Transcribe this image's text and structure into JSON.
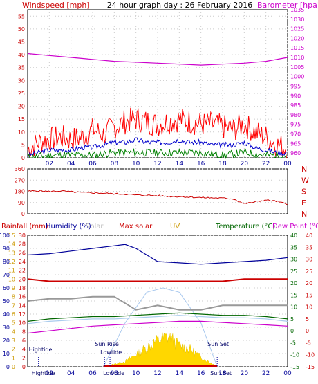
{
  "colors": {
    "wind": "#ff0000",
    "gust": "#ff0000",
    "avgwind": "#0000cc",
    "lowwind": "#008000",
    "baro": "#cc00cc",
    "dir": "#cc0000",
    "humidity": "#000099",
    "rain": "#cc0000",
    "solar": "#ffd700",
    "solarcurve": "#a8c8ee",
    "temp": "#006600",
    "dew": "#cc00cc",
    "uv": "#cc9900",
    "grey": "#999999",
    "lightblue": "#aaccee",
    "axis": "#000000"
  },
  "chart_data": [
    {
      "type": "line",
      "title": "24 hour graph day : 26 February 2016",
      "ylabel": "Windspeed [mph]",
      "y2label": "Barometer [hpa]",
      "ylim": [
        0,
        57.5
      ],
      "y2lim": [
        957.5,
        1035
      ],
      "yticks": [
        0,
        5,
        10,
        15,
        20,
        25,
        30,
        35,
        40,
        45,
        50,
        55
      ],
      "y2ticks": [
        960,
        965,
        970,
        975,
        980,
        985,
        990,
        995,
        1000,
        1005,
        1010,
        1015,
        1020,
        1025,
        1030,
        1035
      ],
      "x_ticks": [
        "02",
        "04",
        "06",
        "08",
        "10",
        "12",
        "14",
        "16",
        "18",
        "20",
        "22",
        "00"
      ],
      "series": [
        {
          "name": "",
          "key": "gust",
          "x": [
            0,
            1,
            2,
            3,
            4,
            5,
            6,
            7,
            8,
            9,
            10,
            11,
            12,
            13,
            14,
            15,
            16,
            17,
            18,
            19,
            20,
            21,
            22,
            23,
            24
          ],
          "values": [
            3,
            6,
            7,
            8,
            7,
            8,
            11,
            9,
            12,
            14,
            15,
            14,
            13,
            14,
            15,
            14,
            13,
            13,
            12,
            11,
            13,
            10,
            8,
            5,
            4
          ]
        },
        {
          "name": "",
          "key": "avgwind",
          "x": [
            0,
            1,
            2,
            3,
            4,
            5,
            6,
            7,
            8,
            9,
            10,
            11,
            12,
            13,
            14,
            15,
            16,
            17,
            18,
            19,
            20,
            21,
            22,
            23,
            24
          ],
          "values": [
            1,
            2,
            3,
            3,
            3,
            4,
            4,
            5,
            6,
            6,
            7,
            6,
            6,
            6,
            7,
            6,
            6,
            5,
            5,
            5,
            6,
            4,
            3,
            2,
            2
          ]
        },
        {
          "name": "",
          "key": "lowwind",
          "x": [
            0,
            2,
            4,
            6,
            8,
            10,
            12,
            14,
            16,
            18,
            20,
            22,
            24
          ],
          "values": [
            0,
            1,
            1,
            1,
            2,
            2,
            2,
            2,
            2,
            1,
            2,
            1,
            1
          ]
        },
        {
          "name": "",
          "key": "baro",
          "x": [
            0,
            2,
            4,
            6,
            8,
            10,
            12,
            14,
            16,
            18,
            20,
            22,
            24
          ],
          "values": [
            1012,
            1011,
            1010,
            1009,
            1008,
            1007.5,
            1007,
            1006.5,
            1006,
            1006.5,
            1007,
            1008,
            1010
          ]
        }
      ]
    },
    {
      "type": "line",
      "ylim": [
        0,
        360
      ],
      "yticks": [
        0,
        90,
        180,
        270,
        360
      ],
      "compass": [
        "N",
        "W",
        "S",
        "E",
        "N"
      ],
      "x_ticks": [
        "02",
        "04",
        "06",
        "08",
        "10",
        "12",
        "14",
        "16",
        "18",
        "20",
        "22",
        "00"
      ],
      "series": [
        {
          "name": "",
          "key": "dir",
          "x": [
            0,
            1,
            2,
            3,
            4,
            5,
            6,
            7,
            8,
            9,
            10,
            11,
            12,
            13,
            14,
            15,
            16,
            17,
            18,
            19,
            20,
            21,
            22,
            23,
            24
          ],
          "values": [
            180,
            185,
            178,
            183,
            176,
            170,
            168,
            165,
            160,
            158,
            150,
            148,
            145,
            140,
            138,
            135,
            130,
            128,
            125,
            120,
            80,
            95,
            110,
            100,
            75
          ]
        }
      ]
    },
    {
      "type": "line",
      "legend": {
        "rainfall": "Rainfall (mm)",
        "humidity": "Humidity (%)",
        "solar": "Solar",
        "maxsolar": "Max solar",
        "uv": "UV",
        "temperature": "Temperature (°C)",
        "dewpoint": "Dew Point (°C)"
      },
      "hum_ticks": [
        0,
        10,
        20,
        30,
        40,
        50,
        60,
        70,
        80,
        90,
        100
      ],
      "rain_ticks": [
        0,
        2,
        4,
        6,
        8,
        10,
        12,
        14,
        16,
        18,
        20,
        22,
        24,
        26,
        28,
        30
      ],
      "temp_ticks": [
        -15,
        -10,
        -5,
        0,
        5,
        10,
        15,
        20,
        25,
        30,
        35,
        40
      ],
      "uv_ticks": [
        0,
        1,
        2,
        3,
        4,
        5,
        6,
        7,
        8,
        9,
        10,
        11,
        12,
        13,
        14,
        15
      ],
      "x_ticks": [
        "02",
        "04",
        "06",
        "08",
        "10",
        "12",
        "14",
        "16",
        "18",
        "20",
        "22",
        "00"
      ],
      "events": [
        {
          "label": "Hightide",
          "hour": 1
        },
        {
          "label": "Sun Rise",
          "hour": 7.1
        },
        {
          "label": "Lowtide",
          "hour": 7.6
        },
        {
          "label": "Sun Set",
          "hour": 17.5
        }
      ],
      "bottom_labels": [
        "Hightide",
        "Lowtide",
        "Sun Set"
      ],
      "series": [
        {
          "name": "",
          "key": "humidity",
          "x": [
            0,
            2,
            4,
            6,
            8,
            9,
            10,
            11,
            12,
            14,
            16,
            18,
            20,
            22,
            24
          ],
          "values": [
            85,
            86,
            88,
            90,
            92,
            93,
            90,
            85,
            80,
            79,
            78,
            79,
            80,
            81,
            83
          ]
        },
        {
          "name": "",
          "key": "temp",
          "x": [
            0,
            2,
            4,
            6,
            8,
            10,
            12,
            14,
            16,
            18,
            20,
            22,
            24
          ],
          "values": [
            4,
            5,
            5.5,
            6,
            6,
            6.5,
            7,
            7.5,
            7,
            6.5,
            6.5,
            6,
            5
          ]
        },
        {
          "name": "",
          "key": "dew",
          "x": [
            0,
            2,
            4,
            6,
            8,
            10,
            12,
            14,
            16,
            18,
            20,
            22,
            24
          ],
          "values": [
            -1,
            0,
            1,
            2,
            2.5,
            3,
            3.5,
            4,
            4,
            3.5,
            3,
            2.5,
            2
          ]
        },
        {
          "name": "",
          "key": "redline",
          "x": [
            0,
            2,
            4,
            6,
            8,
            10,
            12,
            14,
            16,
            18,
            20,
            22,
            24
          ],
          "values": [
            20,
            19.5,
            19.5,
            19.5,
            19.5,
            19.5,
            19.5,
            19.5,
            19.5,
            19.5,
            20,
            20,
            20
          ]
        },
        {
          "name": "",
          "key": "grey",
          "x": [
            0,
            2,
            4,
            6,
            8,
            10,
            12,
            14,
            16,
            18,
            20,
            22,
            24
          ],
          "values": [
            15,
            15.5,
            15.5,
            16,
            16,
            13,
            14,
            13,
            13,
            14,
            14,
            14,
            14
          ]
        },
        {
          "name": "",
          "key": "lightblue",
          "x": [
            0,
            2,
            4,
            6,
            8,
            10,
            12,
            14,
            16,
            18,
            20,
            22,
            24
          ],
          "values": [
            3,
            4,
            4.5,
            5,
            5,
            5.5,
            6,
            6.5,
            6,
            5.5,
            5.5,
            5,
            4
          ]
        },
        {
          "name": "",
          "key": "solar",
          "x": [
            7,
            8,
            9,
            10,
            11,
            12,
            13,
            14,
            15,
            16,
            17,
            17.5
          ],
          "values": [
            0,
            30,
            60,
            140,
            220,
            300,
            340,
            240,
            200,
            110,
            40,
            0
          ]
        },
        {
          "name": "",
          "key": "maxsolar",
          "x": [
            7,
            9,
            11,
            12.5,
            14,
            16,
            17.5
          ],
          "values": [
            0,
            500,
            850,
            900,
            850,
            500,
            0
          ]
        }
      ]
    }
  ]
}
